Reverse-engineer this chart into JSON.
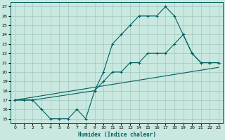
{
  "xlabel": "Humidex (Indice chaleur)",
  "xlim": [
    -0.5,
    23.5
  ],
  "ylim": [
    14.5,
    27.5
  ],
  "yticks": [
    15,
    16,
    17,
    18,
    19,
    20,
    21,
    22,
    23,
    24,
    25,
    26,
    27
  ],
  "xticks": [
    0,
    1,
    2,
    3,
    4,
    5,
    6,
    7,
    8,
    9,
    10,
    11,
    12,
    13,
    14,
    15,
    16,
    17,
    18,
    19,
    20,
    21,
    22,
    23
  ],
  "bg_color": "#c8e8e0",
  "grid_color": "#a0c8c0",
  "line_color": "#006060",
  "line1_x": [
    0,
    1,
    2,
    3,
    4,
    5,
    6,
    7,
    8,
    9,
    10,
    11,
    12,
    13,
    14,
    15,
    16,
    17,
    18,
    19,
    20,
    21,
    22,
    23
  ],
  "line1_y": [
    17,
    17,
    17,
    16,
    15,
    15,
    15,
    16,
    15,
    18,
    20,
    23,
    24,
    25,
    26,
    26,
    26,
    27,
    26,
    24,
    22,
    21,
    21,
    21
  ],
  "line2_x": [
    0,
    2,
    9,
    10,
    11,
    12,
    13,
    14,
    15,
    16,
    17,
    18,
    19,
    20,
    21,
    22,
    23
  ],
  "line2_y": [
    17,
    17,
    18,
    19,
    20,
    20,
    21,
    21,
    22,
    22,
    22,
    23,
    24,
    22,
    21,
    21,
    21
  ],
  "line3_x": [
    0,
    23
  ],
  "line3_y": [
    17,
    20.5
  ]
}
